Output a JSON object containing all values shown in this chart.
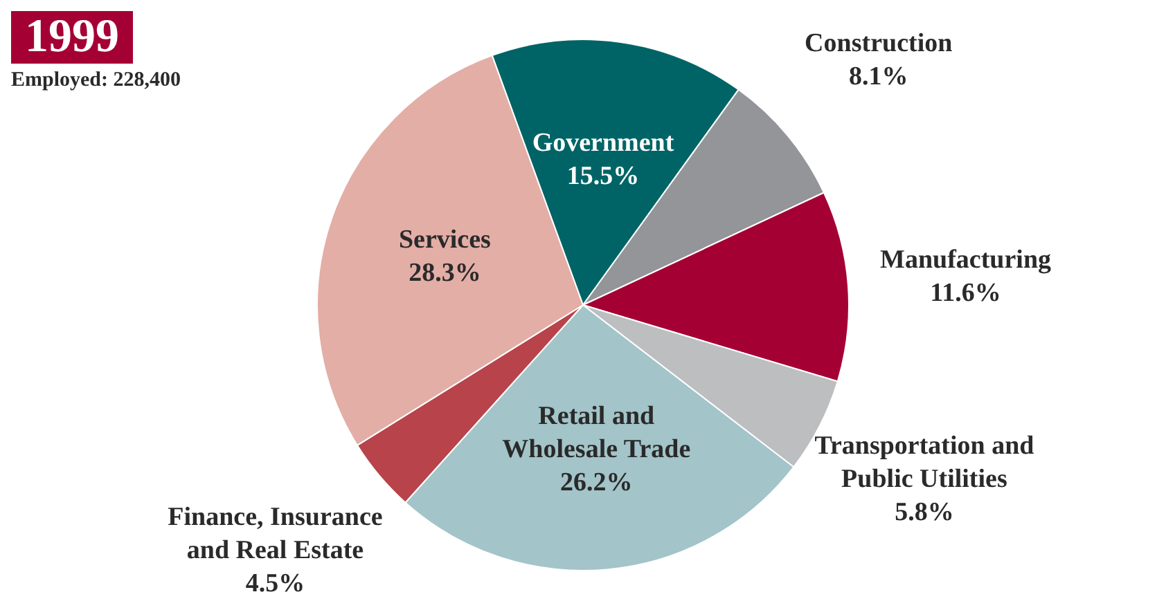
{
  "chart_data": {
    "type": "pie",
    "title": "1999",
    "subtitle": "Employed: 228,400",
    "categories": [
      "Government",
      "Construction",
      "Manufacturing",
      "Transportation and Public Utilities",
      "Retail and Wholesale Trade",
      "Finance, Insurance and Real Estate",
      "Services"
    ],
    "values": [
      15.5,
      8.1,
      11.6,
      5.8,
      26.2,
      4.5,
      28.3
    ],
    "colors": [
      "#006466",
      "#939598",
      "#a50034",
      "#bcbec0",
      "#a3c4c9",
      "#b8434b",
      "#e3aea6"
    ],
    "value_labels": [
      "15.5%",
      "8.1%",
      "11.6%",
      "5.8%",
      "26.2%",
      "4.5%",
      "28.3%"
    ],
    "legend": false
  }
}
